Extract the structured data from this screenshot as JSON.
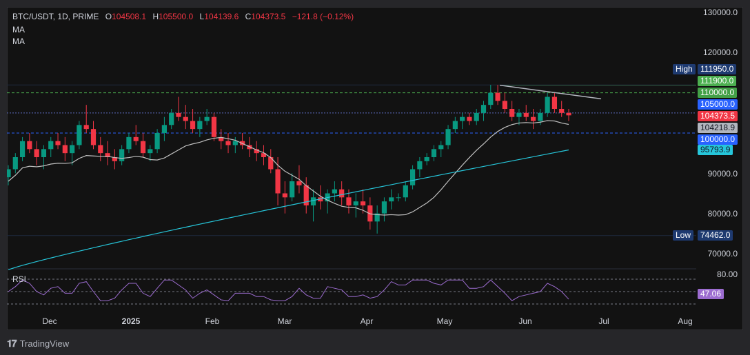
{
  "header": {
    "symbol": "BTC/USDT, 1D, PRIME",
    "open_label": "O",
    "open": "104508.1",
    "high_label": "H",
    "high": "105500.0",
    "low_label": "L",
    "low": "104139.6",
    "close_label": "C",
    "close": "104373.5",
    "change": "−121.8 (−0.12%)",
    "indicators": [
      "MA",
      "MA"
    ]
  },
  "rsi_label": "RSI",
  "footer": {
    "brand": "TradingView"
  },
  "colors": {
    "up": "#089981",
    "down": "#f23645",
    "ma_fast": "#c0c0c0",
    "ma_slow": "#26c6da",
    "rsi": "#9c6cd0",
    "green_level": "#4caf50",
    "blue_level": "#2962ff"
  },
  "chart_data": {
    "type": "candlestick",
    "x_ticks": [
      "Dec",
      "2025",
      "Feb",
      "Mar",
      "Apr",
      "May",
      "Jun",
      "Jul",
      "Aug"
    ],
    "y_ticks": [
      "130000.0",
      "120000.0",
      "90000.0",
      "80000.0",
      "70000.0"
    ],
    "ylim": [
      65000,
      131000
    ],
    "price_tags": {
      "high": {
        "label": "High",
        "value": "111950.0"
      },
      "low": {
        "label": "Low",
        "value": "74462.0"
      },
      "levels": [
        {
          "value": "111900.0",
          "kind": "resistance-green"
        },
        {
          "value": "110000.0",
          "kind": "resistance-green-dashed"
        },
        {
          "value": "105000.0",
          "kind": "blue"
        },
        {
          "value": "104373.5",
          "kind": "last-price"
        },
        {
          "value": "104218.9",
          "kind": "ma-fast"
        },
        {
          "value": "100000.0",
          "kind": "blue"
        },
        {
          "value": "95793.9",
          "kind": "ma-slow"
        }
      ]
    },
    "rsi": {
      "upper": "80.00",
      "value": "47.06",
      "upper_value": 80,
      "lower_value": 20
    },
    "candles_approx": [
      [
        89,
        92,
        87,
        91
      ],
      [
        91,
        95,
        90,
        94
      ],
      [
        94,
        99,
        93,
        98
      ],
      [
        98,
        100,
        95,
        96
      ],
      [
        96,
        98,
        92,
        94
      ],
      [
        94,
        97,
        91,
        96
      ],
      [
        96,
        99,
        94,
        98
      ],
      [
        98,
        100,
        96,
        97
      ],
      [
        97,
        99,
        93,
        95
      ],
      [
        95,
        98,
        92,
        97
      ],
      [
        97,
        103,
        96,
        102
      ],
      [
        102,
        107,
        100,
        101
      ],
      [
        101,
        103,
        96,
        97
      ],
      [
        97,
        99,
        93,
        95
      ],
      [
        95,
        98,
        92,
        94
      ],
      [
        94,
        96,
        91,
        93
      ],
      [
        93,
        97,
        92,
        96
      ],
      [
        96,
        100,
        95,
        99
      ],
      [
        99,
        102,
        97,
        98
      ],
      [
        98,
        100,
        94,
        95
      ],
      [
        95,
        97,
        93,
        96
      ],
      [
        96,
        101,
        95,
        100
      ],
      [
        100,
        104,
        98,
        102
      ],
      [
        102,
        106,
        101,
        105
      ],
      [
        105,
        109,
        103,
        104
      ],
      [
        104,
        107,
        101,
        103
      ],
      [
        103,
        106,
        100,
        101
      ],
      [
        101,
        104,
        99,
        103
      ],
      [
        103,
        106,
        102,
        104
      ],
      [
        104,
        105,
        98,
        99
      ],
      [
        99,
        101,
        96,
        98
      ],
      [
        98,
        100,
        95,
        97
      ],
      [
        97,
        99,
        95,
        98
      ],
      [
        98,
        100,
        96,
        97
      ],
      [
        97,
        99,
        94,
        96
      ],
      [
        96,
        98,
        93,
        95
      ],
      [
        95,
        97,
        92,
        94
      ],
      [
        94,
        96,
        90,
        91
      ],
      [
        91,
        94,
        82,
        85
      ],
      [
        85,
        88,
        80,
        84
      ],
      [
        84,
        90,
        83,
        88
      ],
      [
        88,
        92,
        85,
        87
      ],
      [
        87,
        89,
        80,
        82
      ],
      [
        82,
        86,
        78,
        84
      ],
      [
        84,
        87,
        81,
        83
      ],
      [
        83,
        86,
        80,
        85
      ],
      [
        85,
        88,
        83,
        86
      ],
      [
        86,
        88,
        82,
        84
      ],
      [
        84,
        86,
        80,
        82
      ],
      [
        82,
        85,
        79,
        83
      ],
      [
        83,
        86,
        80,
        82
      ],
      [
        82,
        84,
        76,
        78
      ],
      [
        78,
        82,
        75,
        80
      ],
      [
        80,
        84,
        78,
        83
      ],
      [
        83,
        86,
        81,
        84
      ],
      [
        84,
        85,
        83,
        84
      ],
      [
        84,
        88,
        83,
        87
      ],
      [
        87,
        92,
        86,
        91
      ],
      [
        91,
        94,
        89,
        93
      ],
      [
        93,
        95,
        92,
        94
      ],
      [
        94,
        97,
        93,
        96
      ],
      [
        96,
        98,
        94,
        97
      ],
      [
        97,
        102,
        96,
        101
      ],
      [
        101,
        104,
        100,
        103
      ],
      [
        103,
        105,
        101,
        104
      ],
      [
        104,
        105,
        102,
        103
      ],
      [
        103,
        106,
        102,
        105
      ],
      [
        105,
        108,
        103,
        107
      ],
      [
        107,
        112,
        106,
        110
      ],
      [
        110,
        112,
        107,
        108
      ],
      [
        108,
        110,
        105,
        106
      ],
      [
        106,
        108,
        103,
        104
      ],
      [
        104,
        106,
        102,
        105
      ],
      [
        105,
        107,
        103,
        104
      ],
      [
        104,
        106,
        101,
        103
      ],
      [
        103,
        106,
        102,
        105
      ],
      [
        105,
        110,
        104,
        109
      ],
      [
        109,
        110,
        105,
        106
      ],
      [
        106,
        108,
        104,
        105
      ],
      [
        105,
        106,
        103,
        104.4
      ]
    ]
  }
}
